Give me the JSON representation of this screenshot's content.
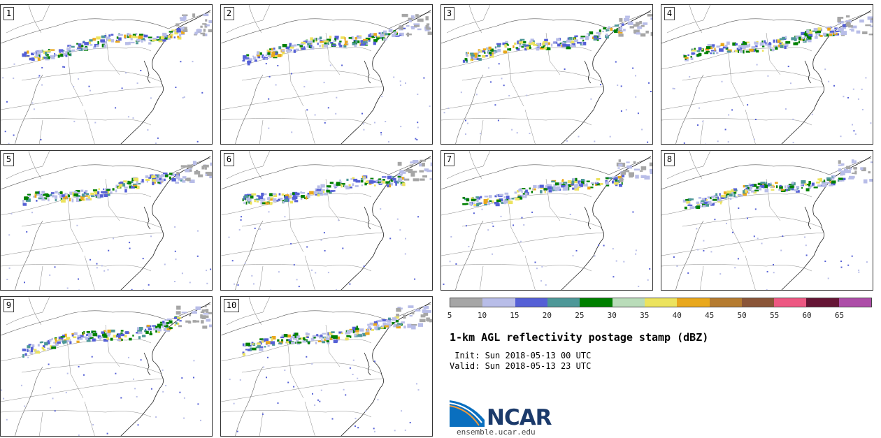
{
  "panels": [
    {
      "label": "1"
    },
    {
      "label": "2"
    },
    {
      "label": "3"
    },
    {
      "label": "4"
    },
    {
      "label": "5"
    },
    {
      "label": "6"
    },
    {
      "label": "7"
    },
    {
      "label": "8"
    },
    {
      "label": "9"
    },
    {
      "label": "10"
    }
  ],
  "colorbar": {
    "colors": [
      "#a6a6a6",
      "#b8bde8",
      "#5560d6",
      "#4e9898",
      "#008000",
      "#b9dcb9",
      "#ece35e",
      "#e9a81d",
      "#b57b30",
      "#8a5538",
      "#ed5782",
      "#651535",
      "#ad4da8"
    ],
    "ticks": [
      "5",
      "10",
      "15",
      "20",
      "25",
      "30",
      "35",
      "40",
      "45",
      "50",
      "55",
      "60",
      "65"
    ]
  },
  "title": "1-km AGL reflectivity postage stamp (dBZ)",
  "init_label": " Init: Sun 2018-05-13 00 UTC",
  "valid_label": "Valid: Sun 2018-05-13 23 UTC",
  "logo": {
    "name": "ncar-logo",
    "text": "NCAR"
  },
  "url": "ensemble.ucar.edu"
}
